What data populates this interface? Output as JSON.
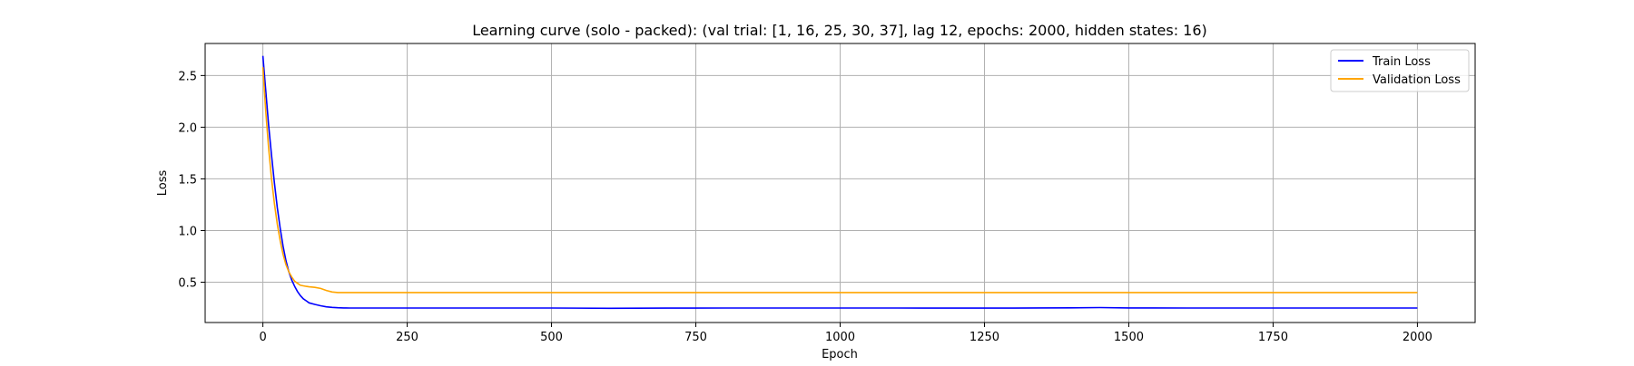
{
  "chart_data": {
    "type": "line",
    "title": "Learning curve (solo - packed): (val trial: [1, 16, 25, 30, 37], lag 12, epochs: 2000, hidden states: 16)",
    "xlabel": "Epoch",
    "ylabel": "Loss",
    "xlim": [
      -100,
      2100
    ],
    "ylim": [
      0.11,
      2.81
    ],
    "grid": true,
    "legend_position": "top-right",
    "x_ticks": [
      0,
      250,
      500,
      750,
      1000,
      1250,
      1500,
      1750,
      2000
    ],
    "x_tick_labels": [
      "0",
      "250",
      "500",
      "750",
      "1000",
      "1250",
      "1500",
      "1750",
      "2000"
    ],
    "y_ticks": [
      0.5,
      1.0,
      1.5,
      2.0,
      2.5
    ],
    "y_tick_labels": [
      "0.5",
      "1.0",
      "1.5",
      "2.0",
      "2.5"
    ],
    "series": [
      {
        "name": "Train Loss",
        "color": "#0000ff",
        "x": [
          0,
          5,
          10,
          15,
          20,
          25,
          30,
          35,
          40,
          45,
          50,
          55,
          60,
          65,
          70,
          75,
          80,
          90,
          100,
          110,
          120,
          130,
          140,
          150,
          175,
          200,
          250,
          300,
          400,
          500,
          600,
          700,
          800,
          900,
          1000,
          1100,
          1200,
          1300,
          1400,
          1450,
          1500,
          1600,
          1700,
          1800,
          1900,
          2000
        ],
        "y": [
          2.69,
          2.35,
          2.02,
          1.73,
          1.46,
          1.22,
          1.02,
          0.85,
          0.71,
          0.6,
          0.52,
          0.46,
          0.41,
          0.37,
          0.34,
          0.32,
          0.3,
          0.285,
          0.272,
          0.262,
          0.256,
          0.253,
          0.251,
          0.25,
          0.25,
          0.25,
          0.25,
          0.25,
          0.25,
          0.25,
          0.248,
          0.249,
          0.25,
          0.25,
          0.25,
          0.25,
          0.249,
          0.249,
          0.252,
          0.255,
          0.251,
          0.25,
          0.25,
          0.25,
          0.25,
          0.25
        ]
      },
      {
        "name": "Validation Loss",
        "color": "#ffa500",
        "x": [
          0,
          5,
          10,
          15,
          20,
          25,
          30,
          35,
          40,
          45,
          50,
          55,
          60,
          65,
          70,
          75,
          80,
          90,
          100,
          110,
          120,
          130,
          140,
          200,
          500,
          1000,
          1500,
          2000
        ],
        "y": [
          2.58,
          2.15,
          1.8,
          1.5,
          1.26,
          1.06,
          0.9,
          0.77,
          0.67,
          0.6,
          0.55,
          0.51,
          0.49,
          0.47,
          0.465,
          0.46,
          0.455,
          0.45,
          0.44,
          0.42,
          0.405,
          0.4,
          0.4,
          0.4,
          0.4,
          0.4,
          0.4,
          0.4
        ]
      }
    ]
  }
}
